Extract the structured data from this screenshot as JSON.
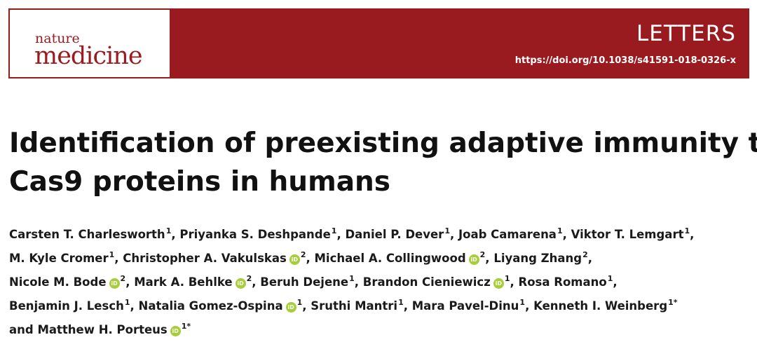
{
  "header": {
    "journal_small": "nature",
    "journal_big": "medicine",
    "section": "LETTERS",
    "doi": "https://doi.org/10.1038/s41591-018-0326-x",
    "brand_color": "#9a1b1f"
  },
  "article": {
    "title_line1": "Identification of preexisting adaptive immunity to",
    "title_line2": "Cas9 proteins in humans"
  },
  "orcid": {
    "icon": "orcid-icon",
    "glyph": "iD",
    "color": "#a6ce39"
  },
  "authors": [
    {
      "name": "Carsten T. Charlesworth",
      "aff": "1"
    },
    {
      "name": "Priyanka S. Deshpande",
      "aff": "1"
    },
    {
      "name": "Daniel P. Dever",
      "aff": "1"
    },
    {
      "name": "Joab Camarena",
      "aff": "1"
    },
    {
      "name": "Viktor T. Lemgart",
      "aff": "1"
    },
    {
      "name": "M. Kyle Cromer",
      "aff": "1"
    },
    {
      "name": "Christopher A. Vakulskas",
      "aff": "2"
    },
    {
      "name": "Michael A. Collingwood",
      "aff": "2"
    },
    {
      "name": "Liyang Zhang",
      "aff": "2"
    },
    {
      "name": "Nicole M. Bode",
      "aff": "2"
    },
    {
      "name": "Mark A. Behlke",
      "aff": "2"
    },
    {
      "name": "Beruh Dejene",
      "aff": "1"
    },
    {
      "name": "Brandon Cieniewicz",
      "aff": "1"
    },
    {
      "name": "Rosa Romano",
      "aff": "1"
    },
    {
      "name": "Benjamin J. Lesch",
      "aff": "1"
    },
    {
      "name": "Natalia Gomez-Ospina",
      "aff": "1"
    },
    {
      "name": "Sruthi Mantri",
      "aff": "1"
    },
    {
      "name": "Mara Pavel-Dinu",
      "aff": "1"
    },
    {
      "name": "Kenneth I. Weinberg",
      "aff": "1*"
    },
    {
      "name": "Matthew H. Porteus",
      "aff": "1*"
    }
  ],
  "conjunction": "and"
}
